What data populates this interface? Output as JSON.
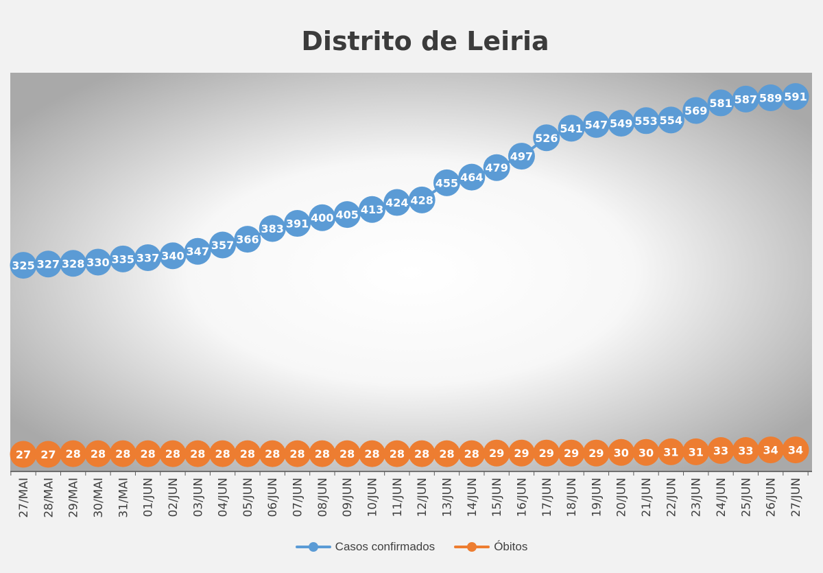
{
  "chart_data": {
    "type": "line",
    "title": "Distrito de Leiria",
    "xlabel": "",
    "ylabel": "",
    "categories": [
      "27/MAI",
      "28/MAI",
      "29/MAI",
      "30/MAI",
      "31/MAI",
      "01/JUN",
      "02/JUN",
      "03/JUN",
      "04/JUN",
      "05/JUN",
      "06/JUN",
      "07/JUN",
      "08/JUN",
      "09/JUN",
      "10/JUN",
      "11/JUN",
      "12/JUN",
      "13/JUN",
      "14/JUN",
      "15/JUN",
      "16/JUN",
      "17/JUN",
      "18/JUN",
      "19/JUN",
      "20/JUN",
      "21/JUN",
      "22/JUN",
      "23/JUN",
      "24/JUN",
      "25/JUN",
      "26/JUN",
      "27/JUN"
    ],
    "series": [
      {
        "name": "Casos confirmados",
        "color": "#5b9bd5",
        "values": [
          325,
          327,
          328,
          330,
          335,
          337,
          340,
          347,
          357,
          366,
          383,
          391,
          400,
          405,
          413,
          424,
          428,
          455,
          464,
          479,
          497,
          526,
          541,
          547,
          549,
          553,
          554,
          569,
          581,
          587,
          589,
          591
        ]
      },
      {
        "name": "Óbitos",
        "color": "#ed7d31",
        "values": [
          27,
          27,
          28,
          28,
          28,
          28,
          28,
          28,
          28,
          28,
          28,
          28,
          28,
          28,
          28,
          28,
          28,
          28,
          28,
          29,
          29,
          29,
          29,
          29,
          30,
          30,
          31,
          31,
          33,
          33,
          34,
          34
        ]
      }
    ],
    "ylim": [
      0,
      700
    ],
    "grid": false,
    "data_labels": true,
    "legend_position": "bottom",
    "background": "radial-gradient"
  }
}
